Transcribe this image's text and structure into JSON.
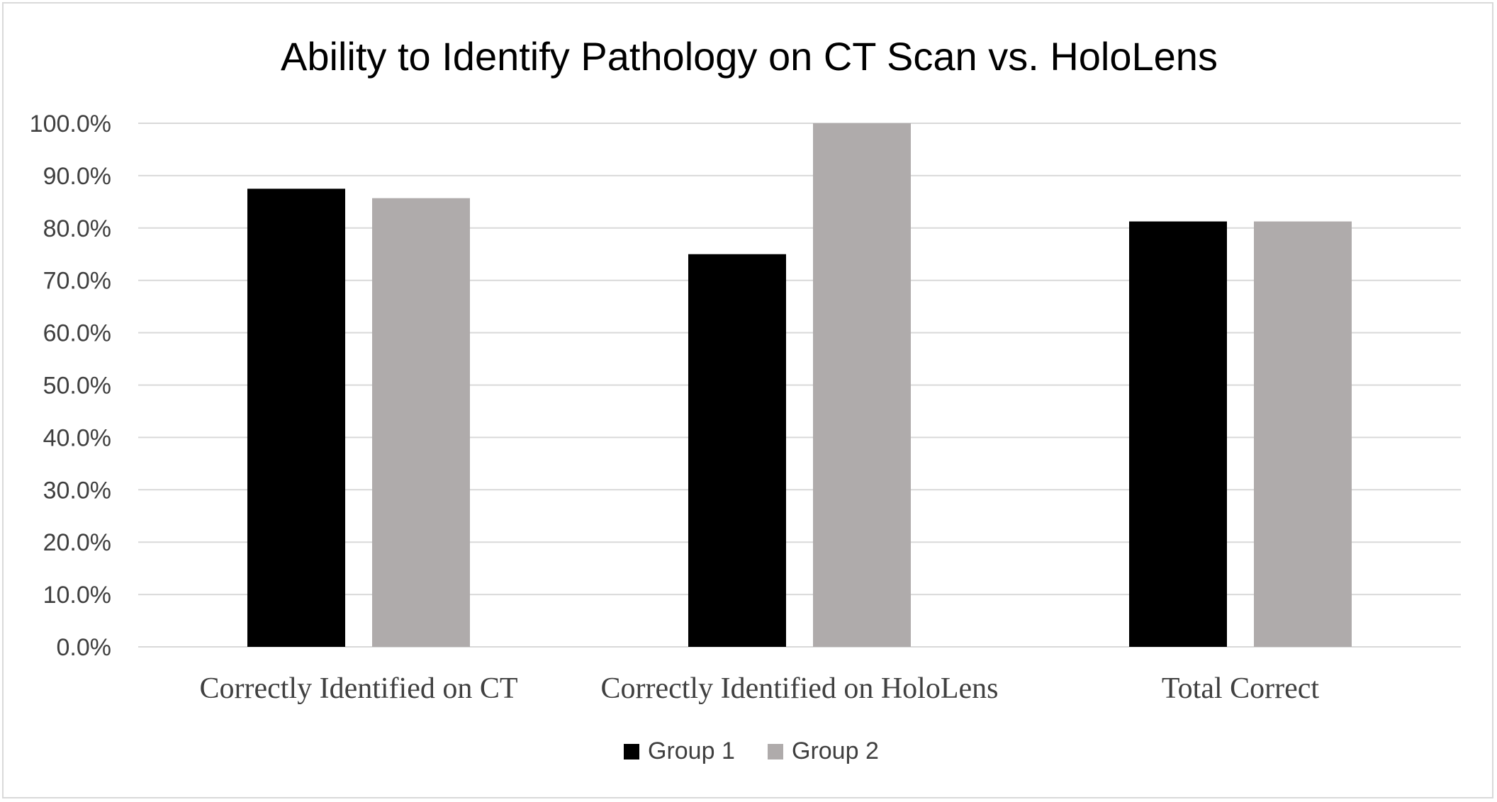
{
  "chart_data": {
    "type": "bar",
    "title": "Ability to Identify Pathology on CT Scan vs. HoloLens",
    "xlabel": "",
    "ylabel": "",
    "categories": [
      "Correctly Identified on CT",
      "Correctly Identified on HoloLens",
      "Total Correct"
    ],
    "series": [
      {
        "name": "Group 1",
        "color": "#000000",
        "values": [
          87.5,
          75.0,
          81.25
        ]
      },
      {
        "name": "Group 2",
        "color": "#afabab",
        "values": [
          85.7,
          100.0,
          81.25
        ]
      }
    ],
    "ylim": [
      0,
      100
    ],
    "yticks": [
      0,
      10,
      20,
      30,
      40,
      50,
      60,
      70,
      80,
      90,
      100
    ],
    "ytick_labels": [
      "0.0%",
      "10.0%",
      "20.0%",
      "30.0%",
      "40.0%",
      "50.0%",
      "60.0%",
      "70.0%",
      "80.0%",
      "90.0%",
      "100.0%"
    ],
    "grid": true,
    "legend_position": "bottom",
    "gridline_color": "#d9d9d9"
  }
}
